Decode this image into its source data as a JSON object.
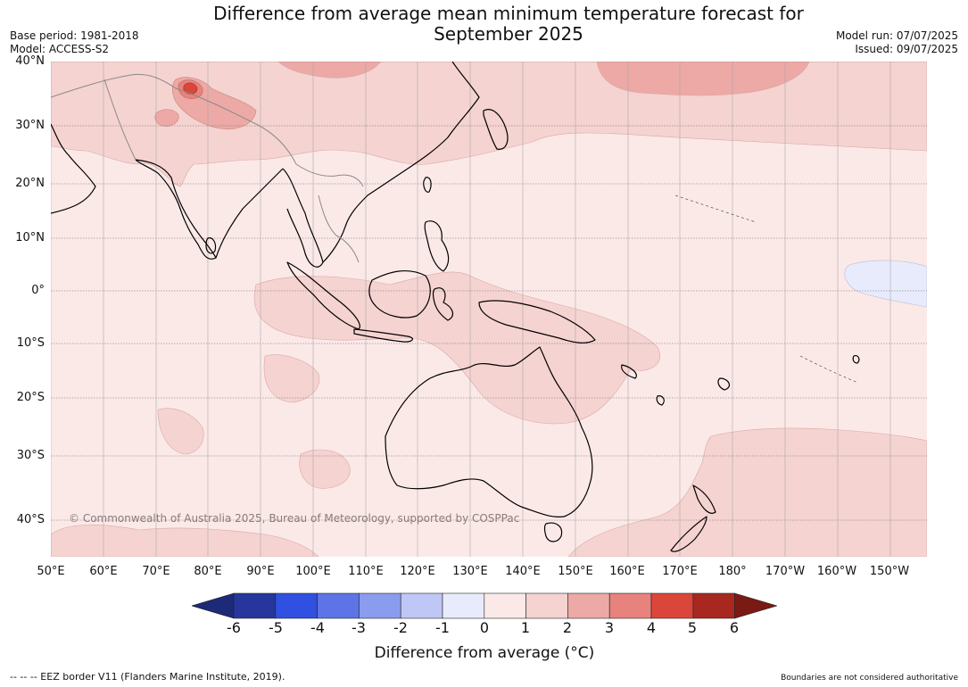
{
  "title": {
    "line1": "Difference from average mean minimum temperature forecast for",
    "line2": "September 2025"
  },
  "meta": {
    "base_period": "Base period: 1981-2018",
    "model": "Model: ACCESS-S2",
    "model_run": "Model run: 07/07/2025",
    "issued": "Issued: 09/07/2025"
  },
  "copyright": "© Commonwealth of Australia 2025, Bureau of Meteorology, supported by COSPPac",
  "latitude_labels": [
    "40°N",
    "30°N",
    "20°N",
    "10°N",
    "0°",
    "10°S",
    "20°S",
    "30°S",
    "40°S"
  ],
  "longitude_labels": [
    "50°E",
    "60°E",
    "70°E",
    "80°E",
    "90°E",
    "100°E",
    "110°E",
    "120°E",
    "130°E",
    "140°E",
    "150°E",
    "160°E",
    "170°E",
    "180°",
    "170°W",
    "160°W",
    "150°W"
  ],
  "colorbar": {
    "ticks": [
      "-6",
      "-5",
      "-4",
      "-3",
      "-2",
      "-1",
      "0",
      "1",
      "2",
      "3",
      "4",
      "5",
      "6"
    ],
    "colors": [
      "#26369c",
      "#2f50e0",
      "#5c74e6",
      "#8a9cee",
      "#bfc7f6",
      "#e8ebfb",
      "#fbe9e8",
      "#f5d3d1",
      "#eca9a6",
      "#e7827c",
      "#db463b",
      "#a8271f"
    ],
    "extend_low_color": "#1c2a78",
    "extend_high_color": "#7a1a14",
    "label": "Difference from average (°C)"
  },
  "legend_note": "--  --  -- EEZ border V11 (Flanders Marine Institute, 2019).",
  "boundary_note": "Boundaries are not considered authoritative",
  "map_colors": {
    "background": "#fbe9e8",
    "anomaly_1_2": "#f5d3d1",
    "anomaly_2_3": "#eca9a6",
    "anomaly_3_4": "#e7827c",
    "anomaly_4_5": "#db463b",
    "anomaly_neg1_0": "#e8ebfb",
    "land_outline": "#000000",
    "border": "#8a8a8a",
    "gridline": "#6a6a6a"
  }
}
